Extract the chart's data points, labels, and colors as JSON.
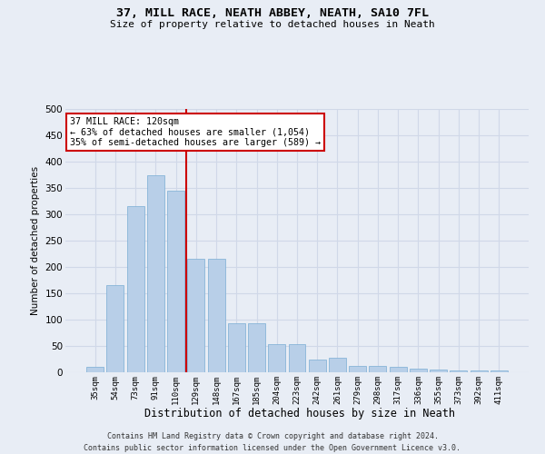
{
  "title": "37, MILL RACE, NEATH ABBEY, NEATH, SA10 7FL",
  "subtitle": "Size of property relative to detached houses in Neath",
  "xlabel": "Distribution of detached houses by size in Neath",
  "ylabel": "Number of detached properties",
  "footer_line1": "Contains HM Land Registry data © Crown copyright and database right 2024.",
  "footer_line2": "Contains public sector information licensed under the Open Government Licence v3.0.",
  "categories": [
    "35sqm",
    "54sqm",
    "73sqm",
    "91sqm",
    "110sqm",
    "129sqm",
    "148sqm",
    "167sqm",
    "185sqm",
    "204sqm",
    "223sqm",
    "242sqm",
    "261sqm",
    "279sqm",
    "298sqm",
    "317sqm",
    "336sqm",
    "355sqm",
    "373sqm",
    "392sqm",
    "411sqm"
  ],
  "values": [
    10,
    165,
    315,
    375,
    345,
    215,
    215,
    93,
    93,
    54,
    54,
    25,
    27,
    12,
    12,
    10,
    7,
    5,
    3,
    3,
    3
  ],
  "bar_color": "#b8cfe8",
  "bar_edge_color": "#7aadd4",
  "grid_color": "#d0d8e8",
  "background_color": "#e8edf5",
  "vline_x": 4.5,
  "vline_color": "#cc0000",
  "annotation_text": "37 MILL RACE: 120sqm\n← 63% of detached houses are smaller (1,054)\n35% of semi-detached houses are larger (589) →",
  "annotation_box_color": "#ffffff",
  "annotation_box_edge": "#cc0000",
  "ylim": [
    0,
    500
  ],
  "yticks": [
    0,
    50,
    100,
    150,
    200,
    250,
    300,
    350,
    400,
    450,
    500
  ]
}
